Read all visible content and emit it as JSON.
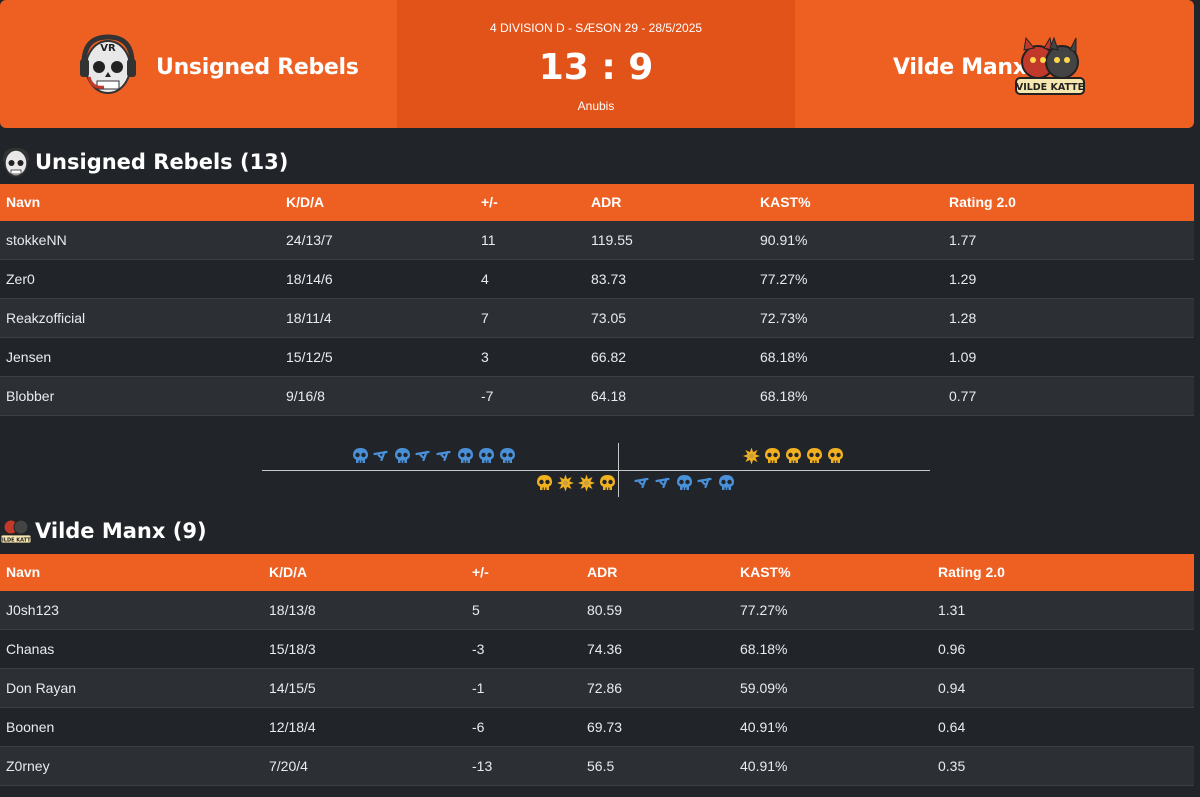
{
  "header": {
    "home": {
      "name": "Unsigned Rebels",
      "logo_text": "VR"
    },
    "away": {
      "name": "Vilde Manx",
      "logo_text": "VILDE KATTE"
    },
    "match_info": "4 DIVISION D - SÆSON 29 - 28/5/2025",
    "score": "13 : 9",
    "map": "Anubis"
  },
  "columns": [
    "Navn",
    "K/D/A",
    "+/-",
    "ADR",
    "KAST%",
    "Rating 2.0"
  ],
  "teams": [
    {
      "title": "Unsigned Rebels (13)",
      "players": [
        {
          "name": "stokkeNN",
          "kda": "24/13/7",
          "pm": "11",
          "adr": "119.55",
          "kast": "90.91%",
          "rating": "1.77"
        },
        {
          "name": "Zer0",
          "kda": "18/14/6",
          "pm": "4",
          "adr": "83.73",
          "kast": "77.27%",
          "rating": "1.29"
        },
        {
          "name": "Reakzofficial",
          "kda": "18/11/4",
          "pm": "7",
          "adr": "73.05",
          "kast": "72.73%",
          "rating": "1.28"
        },
        {
          "name": "Jensen",
          "kda": "15/12/5",
          "pm": "3",
          "adr": "66.82",
          "kast": "68.18%",
          "rating": "1.09"
        },
        {
          "name": "Blobber",
          "kda": "9/16/8",
          "pm": "-7",
          "adr": "64.18",
          "kast": "68.18%",
          "rating": "0.77"
        }
      ]
    },
    {
      "title": "Vilde Manx (9)",
      "players": [
        {
          "name": "J0sh123",
          "kda": "18/13/8",
          "pm": "5",
          "adr": "80.59",
          "kast": "77.27%",
          "rating": "1.31"
        },
        {
          "name": "Chanas",
          "kda": "15/18/3",
          "pm": "-3",
          "adr": "74.36",
          "kast": "68.18%",
          "rating": "0.96"
        },
        {
          "name": "Don Rayan",
          "kda": "14/15/5",
          "pm": "-1",
          "adr": "72.86",
          "kast": "59.09%",
          "rating": "0.94"
        },
        {
          "name": "Boonen",
          "kda": "12/18/4",
          "pm": "-6",
          "adr": "69.73",
          "kast": "40.91%",
          "rating": "0.64"
        },
        {
          "name": "Z0rney",
          "kda": "7/20/4",
          "pm": "-13",
          "adr": "56.5",
          "kast": "40.91%",
          "rating": "0.35"
        }
      ]
    }
  ],
  "rounds": {
    "first_half_top": [
      "ct-skull",
      "defuse",
      "ct-skull",
      "defuse",
      "defuse",
      "ct-skull",
      "ct-skull",
      "ct-skull"
    ],
    "first_half_bottom": [
      "t-skull",
      "explode",
      "explode",
      "t-skull"
    ],
    "second_half_top": [
      "explode",
      "t-skull",
      "t-skull",
      "t-skull",
      "t-skull"
    ],
    "second_half_bottom": [
      "defuse",
      "defuse",
      "ct-skull",
      "defuse",
      "ct-skull"
    ]
  },
  "colors": {
    "accent": "#ee5f22",
    "accent_dark": "#e2531a",
    "background": "#212529",
    "ct": "#4a90d9",
    "t": "#f0b020"
  }
}
